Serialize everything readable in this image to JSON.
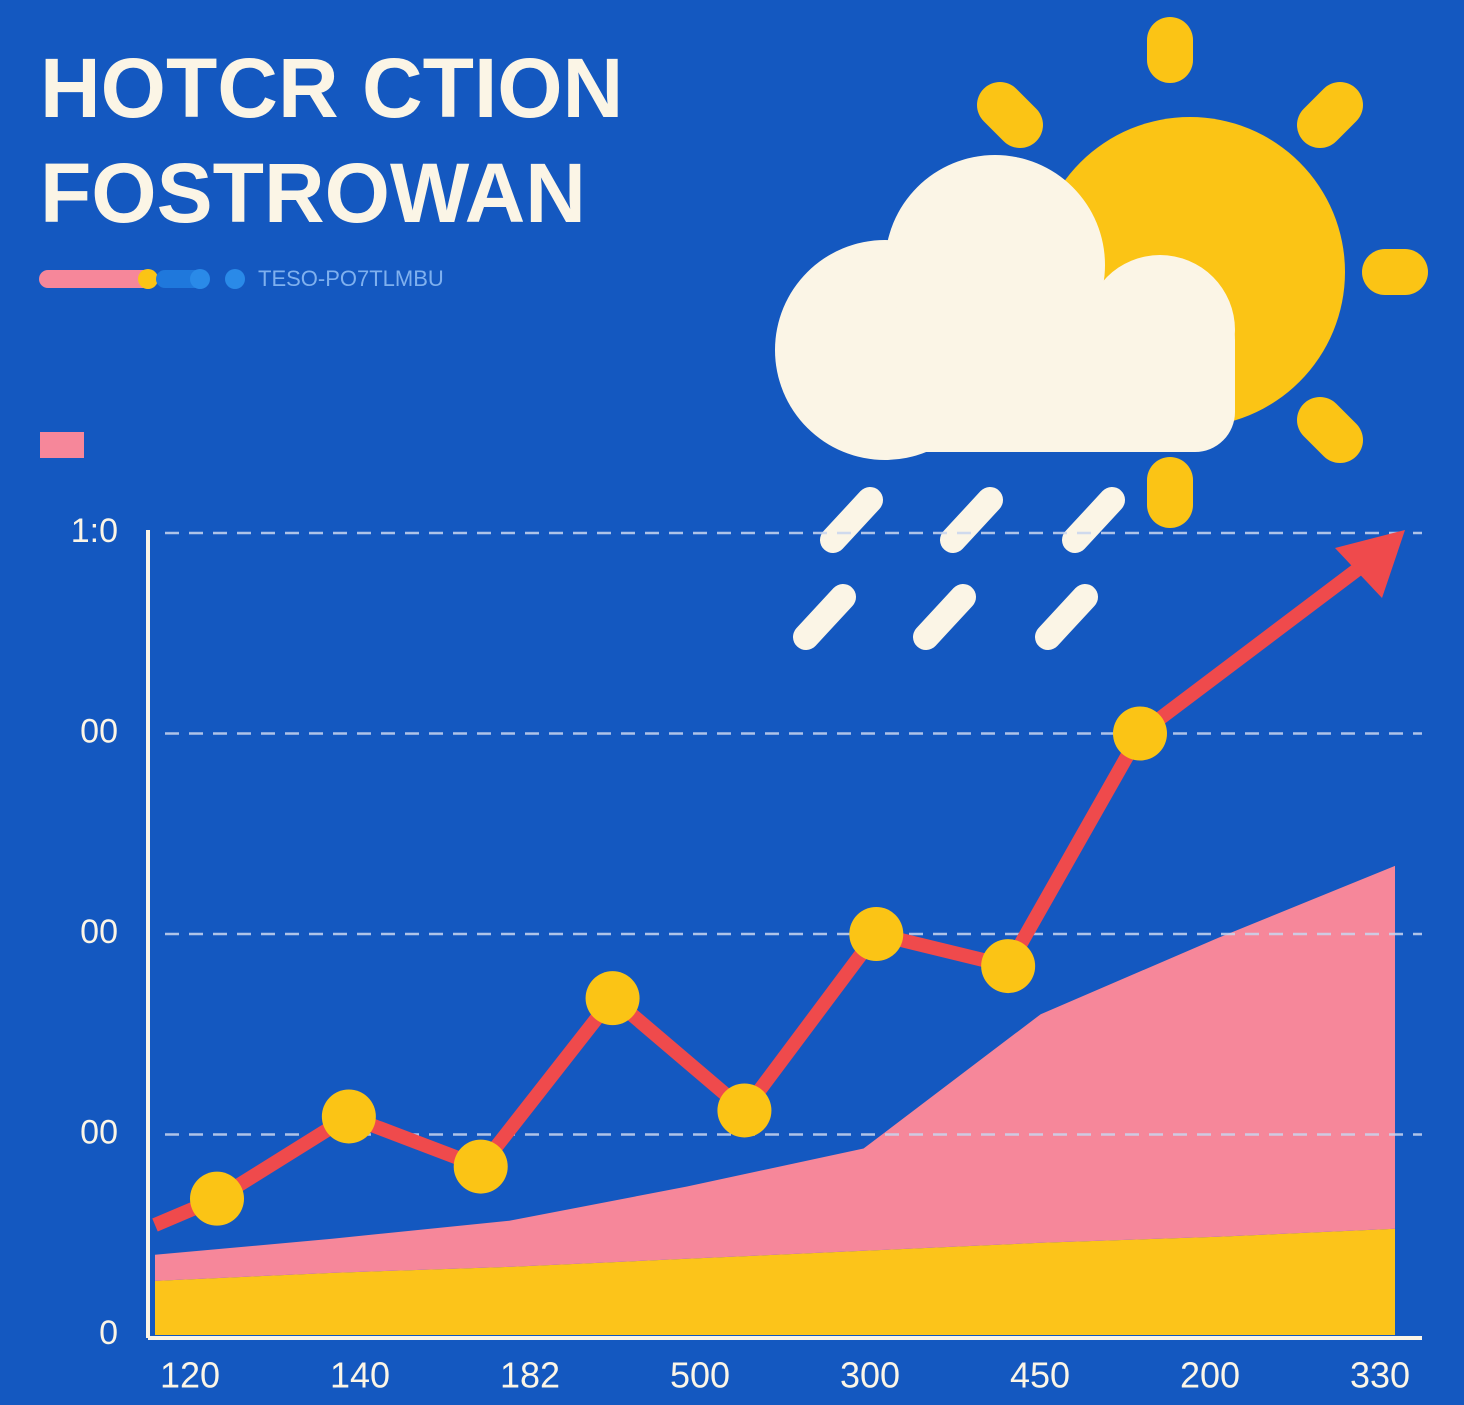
{
  "chart_data": {
    "type": "line-area",
    "title": [
      "HOTCR CTION",
      "FOSTROWAN"
    ],
    "subtitle": "TESO-PO7TLMBU",
    "categories": [
      "120",
      "140",
      "182",
      "500",
      "300",
      "450",
      "200",
      "330"
    ],
    "ylim": [
      0,
      4
    ],
    "yticks": [
      0,
      {
        "value": 1,
        "label": "00"
      },
      {
        "value": 2,
        "label": "00"
      },
      {
        "value": 3,
        "label": "00"
      },
      {
        "value": 4,
        "label": "1:0"
      }
    ],
    "grid": true,
    "line": {
      "color": "#ef4a4c",
      "marker_color": "#fbc415",
      "values": [
        0.68,
        1.09,
        0.84,
        1.68,
        1.12,
        2.0,
        1.84,
        3.0
      ]
    },
    "areas": [
      {
        "color": "#fcc41a",
        "values": [
          0.27,
          0.31,
          0.34,
          0.38,
          0.42,
          0.46,
          0.49,
          0.53
        ]
      },
      {
        "color": "#f6879a",
        "values": [
          0.13,
          0.17,
          0.23,
          0.36,
          0.51,
          1.14,
          1.49,
          1.81
        ]
      }
    ]
  }
}
